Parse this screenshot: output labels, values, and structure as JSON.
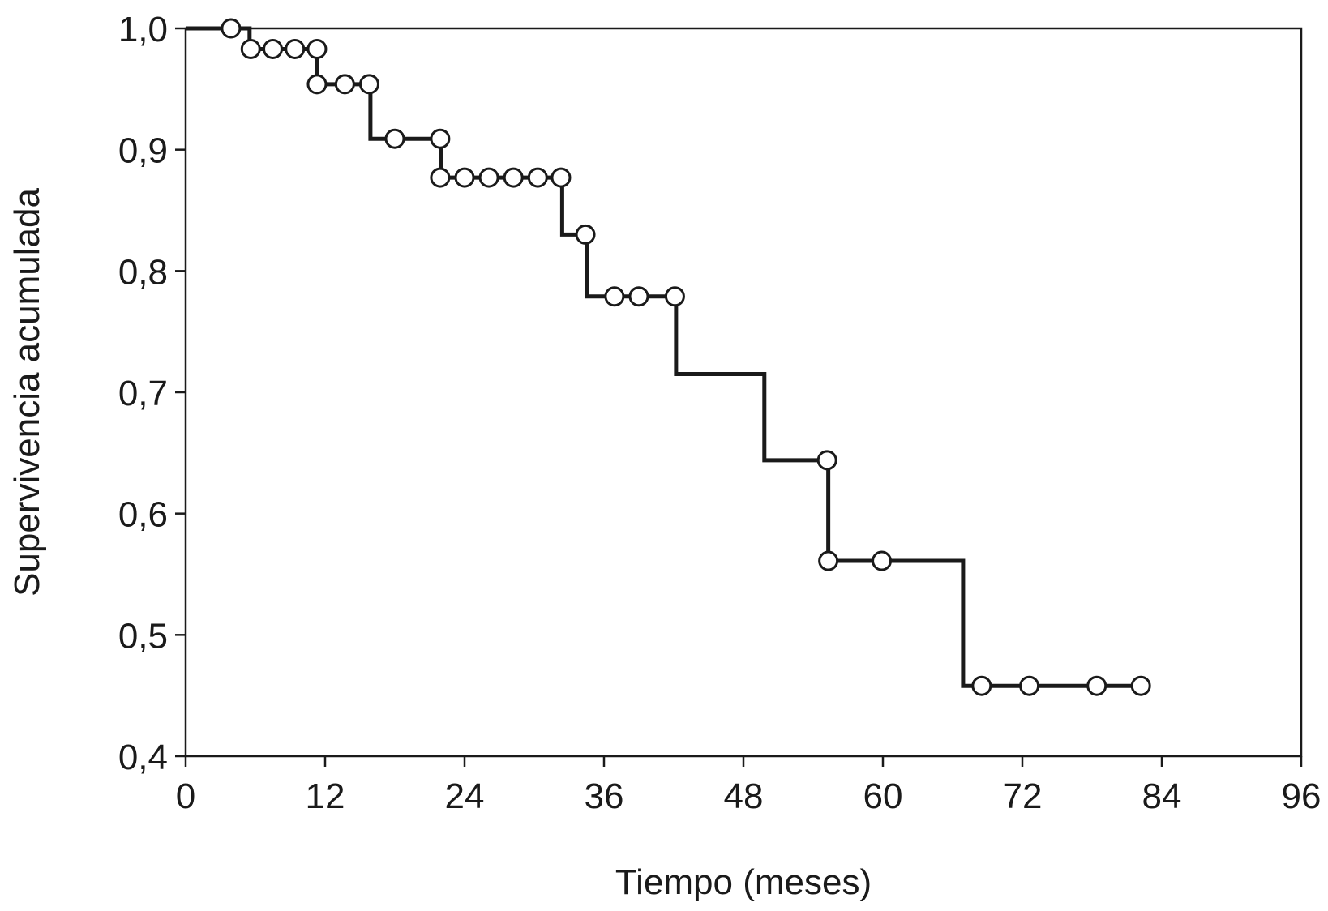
{
  "chart_data": {
    "type": "line",
    "subtype": "kaplan-meier step",
    "xlabel": "Tiempo (meses)",
    "ylabel": "Supervivencia acumulada",
    "xlim": [
      0,
      96
    ],
    "ylim": [
      0.4,
      1.0
    ],
    "x_ticks": [
      0,
      12,
      24,
      36,
      48,
      60,
      72,
      84,
      96
    ],
    "x_tick_labels": [
      "0",
      "12",
      "24",
      "36",
      "48",
      "60",
      "72",
      "84",
      "96"
    ],
    "y_ticks": [
      1.0,
      0.9,
      0.8,
      0.7,
      0.6,
      0.5,
      0.4
    ],
    "y_tick_labels": [
      "1,0",
      "0,9",
      "0,8",
      "0,7",
      "0,6",
      "0,5",
      "0,4"
    ],
    "grid": false,
    "step_curve": [
      [
        0,
        1.0
      ],
      [
        5.5,
        1.0
      ],
      [
        5.5,
        0.983
      ],
      [
        11.3,
        0.983
      ],
      [
        11.3,
        0.954
      ],
      [
        15.9,
        0.954
      ],
      [
        15.9,
        0.909
      ],
      [
        22.0,
        0.909
      ],
      [
        22.0,
        0.877
      ],
      [
        32.4,
        0.877
      ],
      [
        32.4,
        0.83
      ],
      [
        34.5,
        0.83
      ],
      [
        34.5,
        0.779
      ],
      [
        42.2,
        0.779
      ],
      [
        42.2,
        0.715
      ],
      [
        49.8,
        0.715
      ],
      [
        49.8,
        0.644
      ],
      [
        55.3,
        0.644
      ],
      [
        55.3,
        0.561
      ],
      [
        66.9,
        0.561
      ],
      [
        66.9,
        0.458
      ],
      [
        82.2,
        0.458
      ]
    ],
    "censored_points": [
      [
        3.9,
        1.0
      ],
      [
        5.6,
        0.983
      ],
      [
        7.5,
        0.983
      ],
      [
        9.4,
        0.983
      ],
      [
        11.3,
        0.983
      ],
      [
        11.3,
        0.954
      ],
      [
        13.7,
        0.954
      ],
      [
        15.8,
        0.954
      ],
      [
        18.0,
        0.909
      ],
      [
        21.9,
        0.909
      ],
      [
        21.9,
        0.877
      ],
      [
        24.0,
        0.877
      ],
      [
        26.1,
        0.877
      ],
      [
        28.2,
        0.877
      ],
      [
        30.3,
        0.877
      ],
      [
        32.3,
        0.877
      ],
      [
        34.4,
        0.83
      ],
      [
        36.9,
        0.779
      ],
      [
        39.0,
        0.779
      ],
      [
        42.1,
        0.779
      ],
      [
        55.2,
        0.644
      ],
      [
        55.3,
        0.561
      ],
      [
        59.9,
        0.561
      ],
      [
        68.5,
        0.458
      ],
      [
        72.6,
        0.458
      ],
      [
        78.4,
        0.458
      ],
      [
        82.2,
        0.458
      ]
    ]
  }
}
